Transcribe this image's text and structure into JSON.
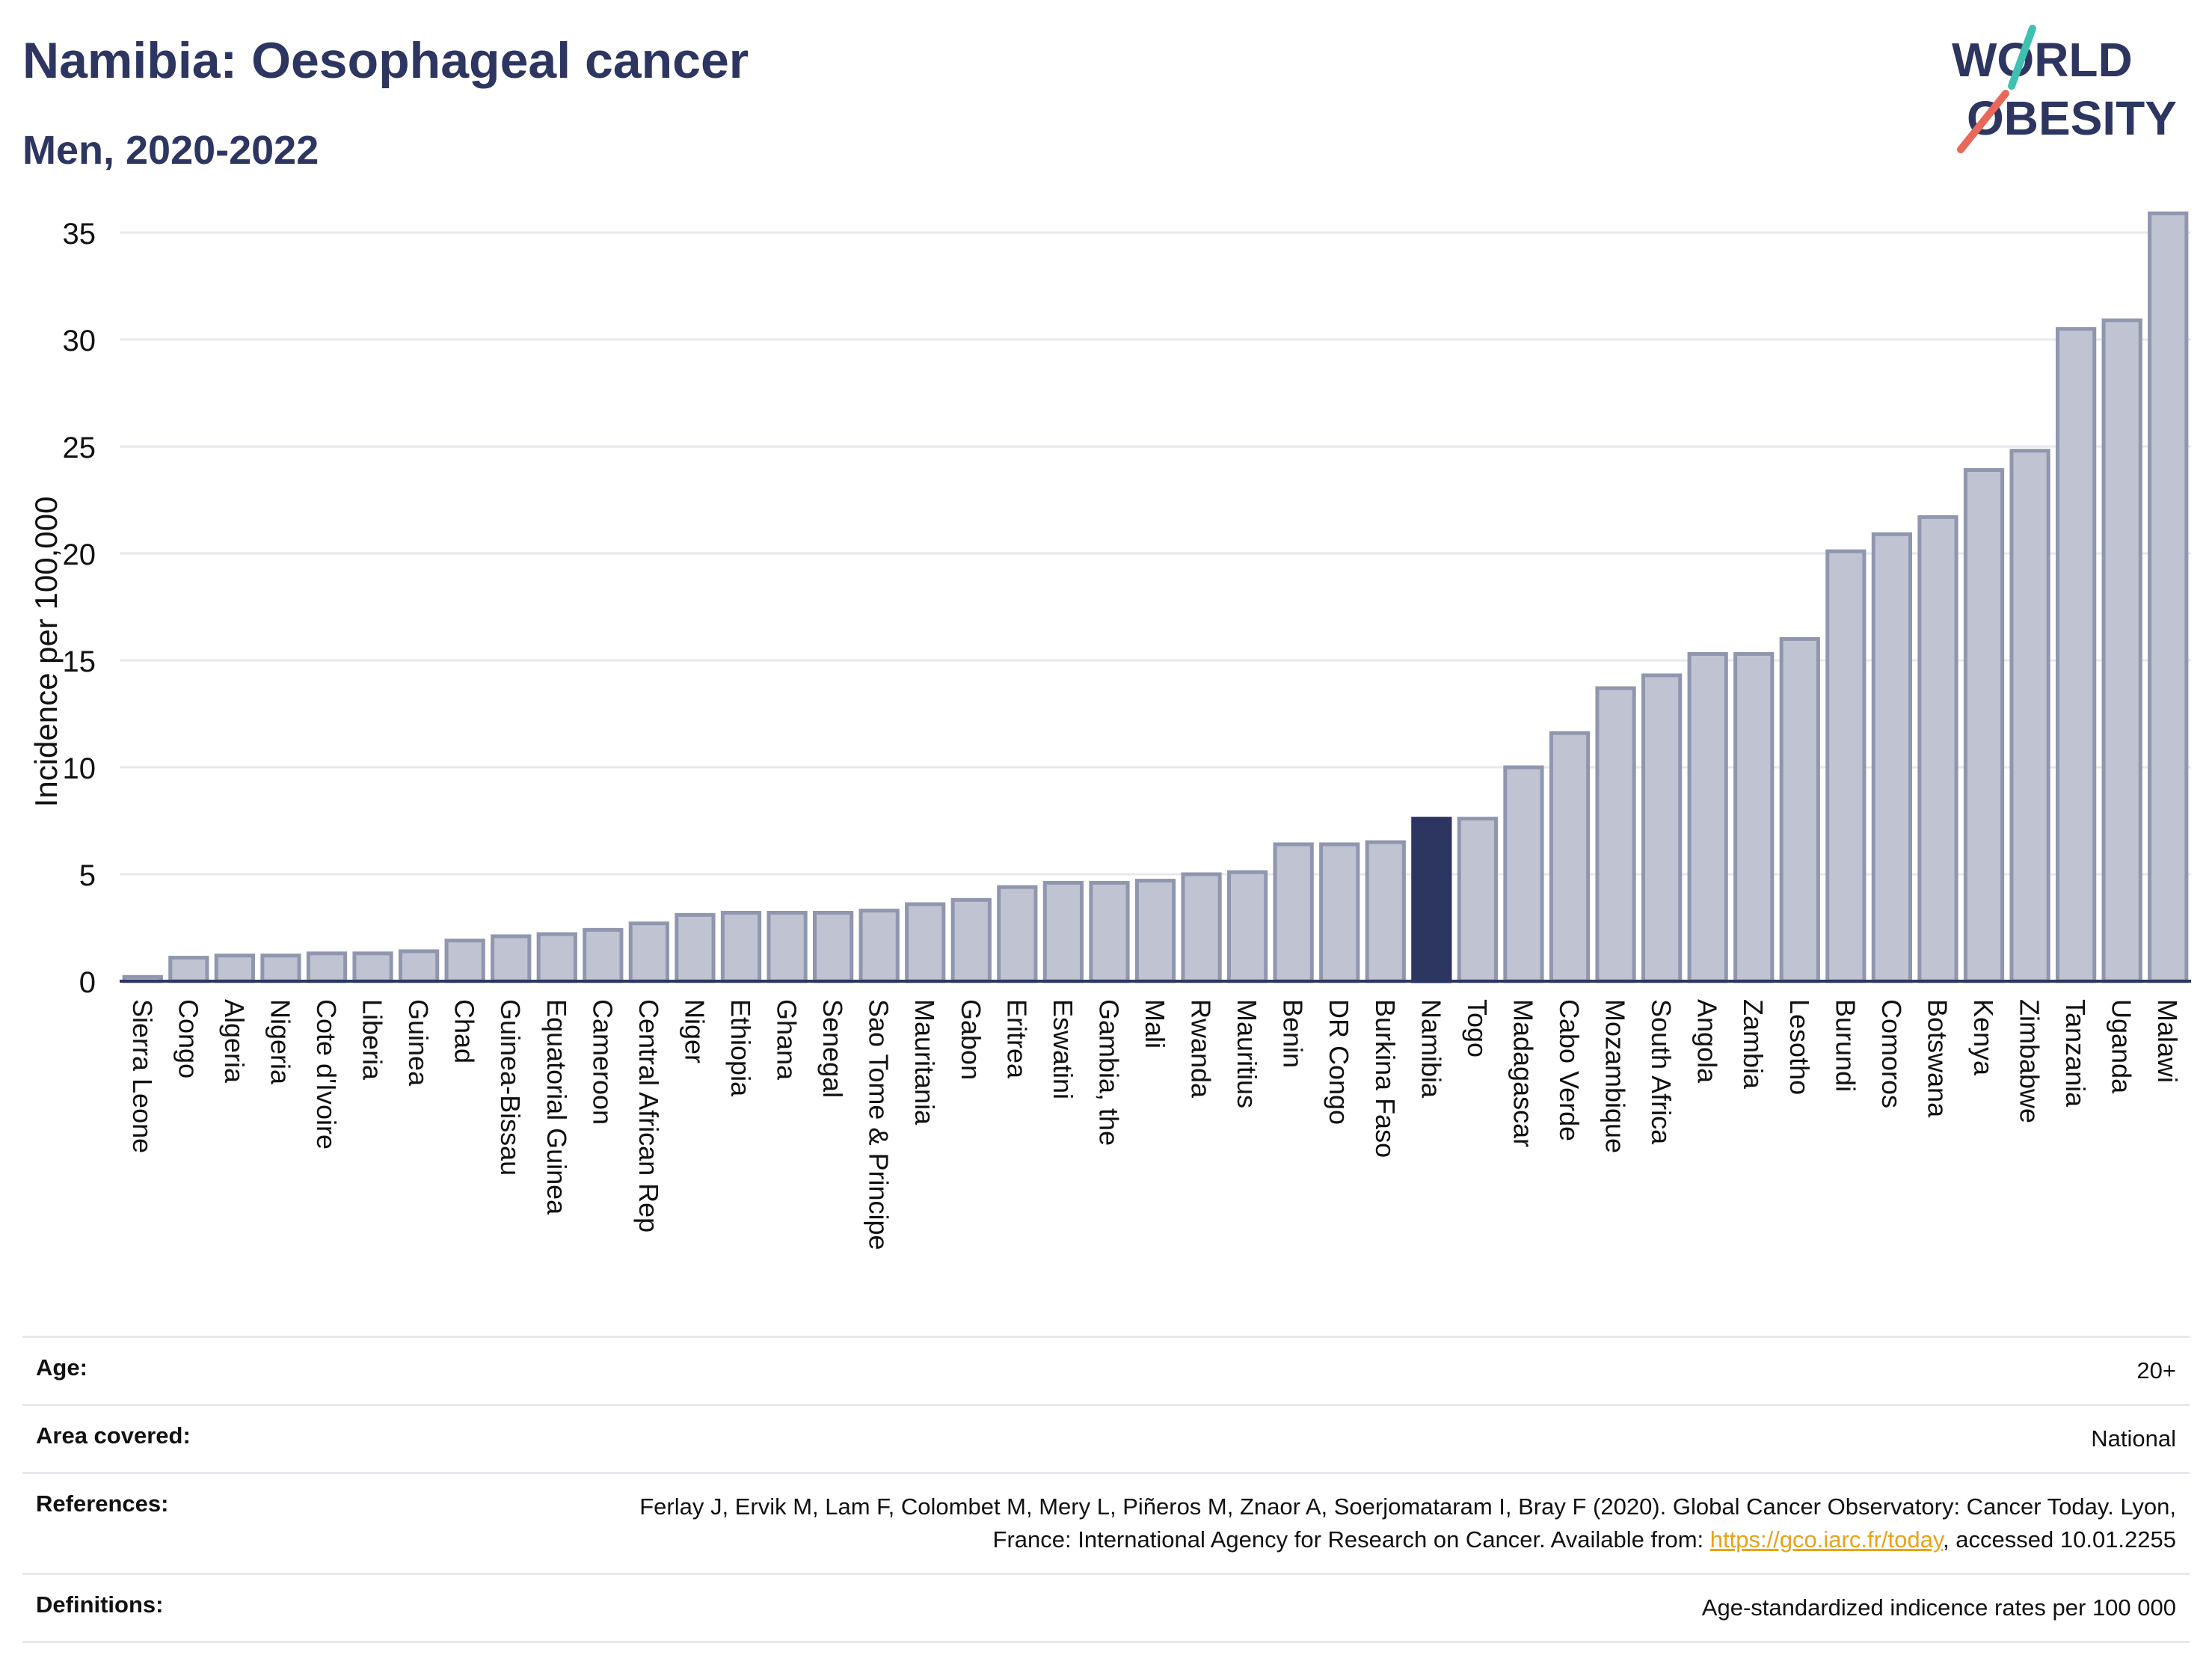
{
  "header": {
    "title": "Namibia: Oesophageal cancer",
    "subtitle": "Men, 2020-2022"
  },
  "logo": {
    "line1": "WORLD",
    "line2": "OBESITY"
  },
  "chart_data": {
    "type": "bar",
    "ylabel": "Incidence per 100,000",
    "ylim": [
      0,
      36
    ],
    "yticks": [
      0,
      5,
      10,
      15,
      20,
      25,
      30,
      35
    ],
    "grid": true,
    "highlight": "Namibia",
    "colors": {
      "bar": "#bfc3d2",
      "bar_edge": "#9096ae",
      "highlight": "#2d3561",
      "grid": "#e6e8ee"
    },
    "categories": [
      "Sierra Leone",
      "Congo",
      "Algeria",
      "Nigeria",
      "Cote d'Ivoire",
      "Liberia",
      "Guinea",
      "Chad",
      "Guinea-Bissau",
      "Equatorial Guinea",
      "Cameroon",
      "Central African Rep",
      "Niger",
      "Ethiopia",
      "Ghana",
      "Senegal",
      "Sao Tome & Principe",
      "Mauritania",
      "Gabon",
      "Eritrea",
      "Eswatini",
      "Gambia, the",
      "Mali",
      "Rwanda",
      "Mauritius",
      "Benin",
      "DR Congo",
      "Burkina Faso",
      "Namibia",
      "Togo",
      "Madagascar",
      "Cabo Verde",
      "Mozambique",
      "South Africa",
      "Angola",
      "Zambia",
      "Lesotho",
      "Burundi",
      "Comoros",
      "Botswana",
      "Kenya",
      "Zimbabwe",
      "Tanzania",
      "Uganda",
      "Malawi"
    ],
    "values": [
      0.2,
      1.1,
      1.2,
      1.2,
      1.3,
      1.3,
      1.4,
      1.9,
      2.1,
      2.2,
      2.4,
      2.7,
      3.1,
      3.2,
      3.2,
      3.2,
      3.3,
      3.6,
      3.8,
      4.4,
      4.6,
      4.6,
      4.7,
      5.0,
      5.1,
      6.4,
      6.4,
      6.5,
      7.6,
      7.6,
      10.0,
      11.6,
      13.7,
      14.3,
      15.3,
      15.3,
      16.0,
      20.1,
      20.9,
      21.7,
      23.9,
      24.8,
      30.5,
      30.9,
      35.9
    ]
  },
  "meta": {
    "age_label": "Age:",
    "age_value": "20+",
    "area_label": "Area covered:",
    "area_value": "National",
    "references_label": "References:",
    "references_text": "Ferlay J, Ervik M, Lam F, Colombet M, Mery L, Piñeros M, Znaor A, Soerjomataram I, Bray F (2020). Global Cancer Observatory: Cancer Today. Lyon, France: International Agency for Research on Cancer. Available from: ",
    "references_link": "https://gco.iarc.fr/today",
    "references_suffix": ", accessed 10.01.2255",
    "definitions_label": "Definitions:",
    "definitions_value": "Age-standardized indicence rates per 100 000"
  }
}
